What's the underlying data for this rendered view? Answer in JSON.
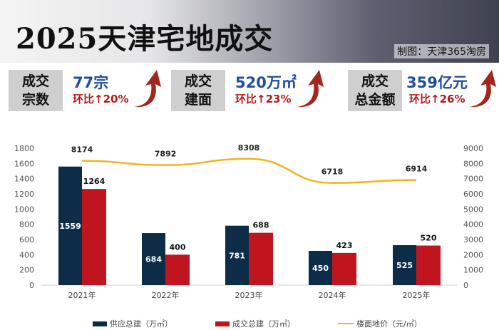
{
  "header": {
    "title": "2025天津宅地成交",
    "credit": "制图：天津365淘房"
  },
  "kpis": [
    {
      "label": "成交\n宗数",
      "line1": "成交",
      "line2": "宗数",
      "value": "77宗",
      "change": "环比↑20%"
    },
    {
      "line1": "成交",
      "line2": "建面",
      "value": "520万㎡",
      "change": "环比↑23%"
    },
    {
      "line1": "成交",
      "line2": "总金额",
      "value": "359亿元",
      "change": "环比↑26%"
    }
  ],
  "colors": {
    "supply": "#0d2c47",
    "deal": "#c0141f",
    "price": "#f3b41b",
    "kpi_value": "#1e4e9c",
    "kpi_change": "#b51a1a"
  },
  "chart_data": {
    "type": "bar",
    "categories": [
      "2021年",
      "2022年",
      "2023年",
      "2024年",
      "2025年"
    ],
    "series": [
      {
        "name": "供应总建（万㎡）",
        "type": "bar",
        "axis": "left",
        "values": [
          1559,
          684,
          781,
          450,
          525
        ]
      },
      {
        "name": "成交总建（万㎡）",
        "type": "bar",
        "axis": "left",
        "values": [
          1264,
          400,
          688,
          423,
          520
        ]
      },
      {
        "name": "楼面地价（元/㎡）",
        "type": "line",
        "axis": "right",
        "values": [
          8174,
          7892,
          8308,
          6718,
          6914
        ]
      }
    ],
    "ylim": [
      0,
      1800
    ],
    "yticks": [
      0,
      200,
      400,
      600,
      800,
      1000,
      1200,
      1400,
      1600,
      1800
    ],
    "y2lim": [
      0,
      9000
    ],
    "y2ticks": [
      0,
      1000,
      2000,
      3000,
      4000,
      5000,
      6000,
      7000,
      8000,
      9000
    ],
    "legend": "bottom"
  }
}
